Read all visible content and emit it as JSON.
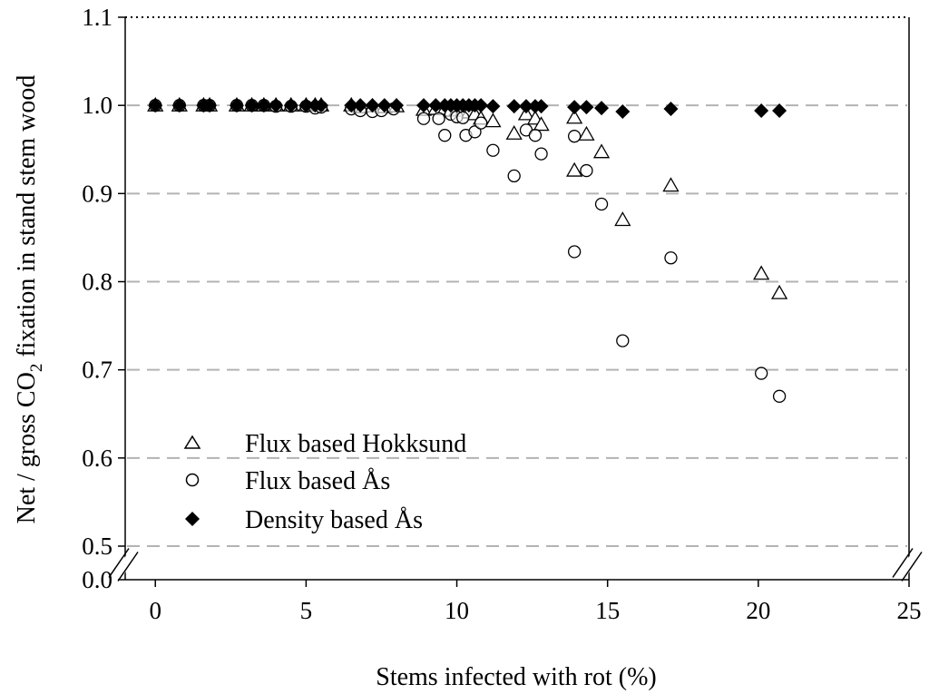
{
  "chart_data": {
    "type": "scatter",
    "title": "",
    "xlabel": "Stems infected with rot (%)",
    "ylabel": {
      "prefix": "Net / gross CO",
      "subscript": "2",
      "suffix": " fixation in stand stem wood"
    },
    "xlim": [
      -1,
      25
    ],
    "ylim": [
      0.5,
      1.1
    ],
    "axis_break": {
      "lower_value": 0.0,
      "label": "0.0"
    },
    "x_ticks": [
      "0",
      "5",
      "10",
      "15",
      "20",
      "25"
    ],
    "x_tick_values": [
      0,
      5,
      10,
      15,
      20,
      25
    ],
    "y_ticks": [
      "0.5",
      "0.6",
      "0.7",
      "0.8",
      "0.9",
      "1.0",
      "1.1"
    ],
    "y_tick_values": [
      0.5,
      0.6,
      0.7,
      0.8,
      0.9,
      1.0,
      1.1
    ],
    "gridlines": "dashed horizontal",
    "legend_position": "lower-left",
    "series": [
      {
        "name": "Flux based Hokksund",
        "marker": "open-triangle",
        "x": [
          0,
          0.8,
          1.6,
          1.8,
          2.7,
          3.2,
          3.6,
          4.0,
          4.5,
          5.0,
          5.3,
          5.5,
          6.5,
          6.8,
          7.2,
          7.6,
          8.0,
          8.9,
          9.3,
          9.6,
          9.8,
          10.0,
          10.2,
          10.4,
          10.6,
          10.8,
          11.2,
          11.9,
          12.3,
          12.6,
          12.8,
          13.9,
          13.9,
          14.3,
          14.8,
          15.5,
          17.1,
          20.1,
          20.7
        ],
        "values": [
          1.0,
          1.0,
          1.0,
          1.0,
          1.0,
          1.0,
          1.0,
          1.0,
          1.0,
          1.0,
          1.0,
          1.0,
          1.0,
          0.998,
          0.999,
          0.998,
          0.999,
          0.995,
          0.996,
          0.996,
          0.994,
          0.995,
          0.994,
          0.992,
          0.99,
          0.985,
          0.982,
          0.968,
          0.99,
          0.985,
          0.978,
          0.986,
          0.926,
          0.967,
          0.947,
          0.87,
          0.909,
          0.809,
          0.787
        ]
      },
      {
        "name": "Flux based Ås",
        "marker": "open-circle",
        "x": [
          0,
          0.8,
          1.6,
          1.8,
          2.7,
          3.2,
          3.6,
          4.0,
          4.5,
          5.0,
          5.3,
          5.5,
          6.5,
          6.8,
          7.2,
          7.5,
          7.9,
          8.9,
          9.4,
          9.6,
          9.8,
          10.0,
          10.2,
          10.3,
          10.6,
          10.8,
          11.2,
          11.9,
          12.3,
          12.6,
          12.8,
          13.9,
          13.9,
          14.3,
          14.8,
          15.5,
          17.1,
          20.1,
          20.7
        ],
        "values": [
          1.0,
          1.0,
          1.0,
          1.0,
          1.0,
          1.0,
          1.0,
          0.999,
          0.999,
          0.999,
          0.997,
          0.998,
          0.996,
          0.994,
          0.993,
          0.994,
          0.996,
          0.985,
          0.985,
          0.966,
          0.99,
          0.987,
          0.986,
          0.966,
          0.97,
          0.98,
          0.949,
          0.92,
          0.972,
          0.966,
          0.945,
          0.965,
          0.834,
          0.926,
          0.888,
          0.733,
          0.827,
          0.696,
          0.67
        ]
      },
      {
        "name": "Density based Ås",
        "marker": "filled-diamond",
        "x": [
          0,
          0.8,
          1.6,
          1.8,
          2.7,
          3.2,
          3.6,
          4.0,
          4.5,
          5.0,
          5.3,
          5.5,
          6.5,
          6.8,
          7.2,
          7.6,
          8.0,
          8.9,
          9.3,
          9.6,
          9.8,
          10.0,
          10.2,
          10.4,
          10.6,
          10.8,
          11.2,
          11.9,
          12.3,
          12.6,
          12.8,
          13.9,
          14.3,
          14.8,
          15.5,
          17.1,
          20.1,
          20.7
        ],
        "values": [
          1.0,
          1.0,
          1.0,
          1.0,
          1.0,
          1.0,
          1.0,
          1.0,
          1.0,
          1.0,
          1.0,
          1.0,
          1.0,
          1.0,
          1.0,
          1.0,
          1.0,
          1.0,
          1.0,
          1.0,
          1.0,
          1.0,
          1.0,
          1.0,
          1.0,
          1.0,
          0.999,
          0.999,
          0.999,
          0.999,
          0.999,
          0.998,
          0.998,
          0.997,
          0.993,
          0.996,
          0.994,
          0.994
        ]
      }
    ]
  }
}
